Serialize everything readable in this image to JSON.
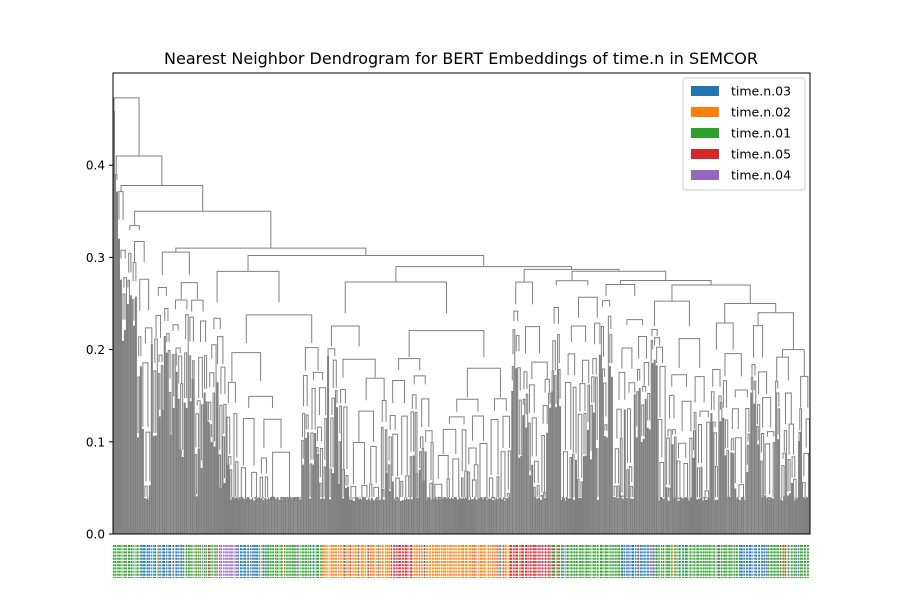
{
  "chart_data": {
    "type": "dendrogram",
    "title": "Nearest Neighbor Dendrogram for BERT Embeddings of time.n in SEMCOR",
    "xlabel": "",
    "ylabel": "",
    "ylim": [
      0,
      0.5
    ],
    "yticks": [
      0.0,
      0.1,
      0.2,
      0.3,
      0.4
    ],
    "ytick_labels": [
      "0.0",
      "0.1",
      "0.2",
      "0.3",
      "0.4"
    ],
    "link_color": "#808080",
    "legend": {
      "placement": "top-right",
      "entries": [
        {
          "label": "time.n.03",
          "color": "#1f77b4"
        },
        {
          "label": "time.n.02",
          "color": "#ff7f0e"
        },
        {
          "label": "time.n.01",
          "color": "#2ca02c"
        },
        {
          "label": "time.n.05",
          "color": "#d62728"
        },
        {
          "label": "time.n.04",
          "color": "#9467bd"
        }
      ]
    },
    "leaf_sense_regions": [
      {
        "sense": "time.n.01",
        "share": 0.04
      },
      {
        "sense": "time.n.03",
        "share": 0.06
      },
      {
        "sense": "time.n.01",
        "share": 0.05
      },
      {
        "sense": "time.n.04",
        "share": 0.03
      },
      {
        "sense": "time.n.03",
        "share": 0.04
      },
      {
        "sense": "time.n.01",
        "share": 0.08
      },
      {
        "sense": "time.n.02",
        "share": 0.1
      },
      {
        "sense": "time.n.05",
        "share": 0.03
      },
      {
        "sense": "time.n.02",
        "share": 0.14
      },
      {
        "sense": "time.n.05",
        "share": 0.06
      },
      {
        "sense": "time.n.01",
        "share": 0.1
      },
      {
        "sense": "time.n.03",
        "share": 0.05
      },
      {
        "sense": "time.n.01",
        "share": 0.12
      },
      {
        "sense": "time.n.03",
        "share": 0.04
      },
      {
        "sense": "time.n.01",
        "share": 0.06
      }
    ],
    "major_merges": [
      {
        "height": 0.473
      },
      {
        "height": 0.41
      },
      {
        "height": 0.378
      },
      {
        "height": 0.35
      },
      {
        "height": 0.31
      },
      {
        "height": 0.302
      },
      {
        "height": 0.29
      },
      {
        "height": 0.287
      },
      {
        "height": 0.285
      },
      {
        "height": 0.275
      },
      {
        "height": 0.27
      },
      {
        "height": 0.25
      },
      {
        "height": 0.24
      },
      {
        "height": 0.2
      },
      {
        "height": 0.175
      }
    ]
  }
}
